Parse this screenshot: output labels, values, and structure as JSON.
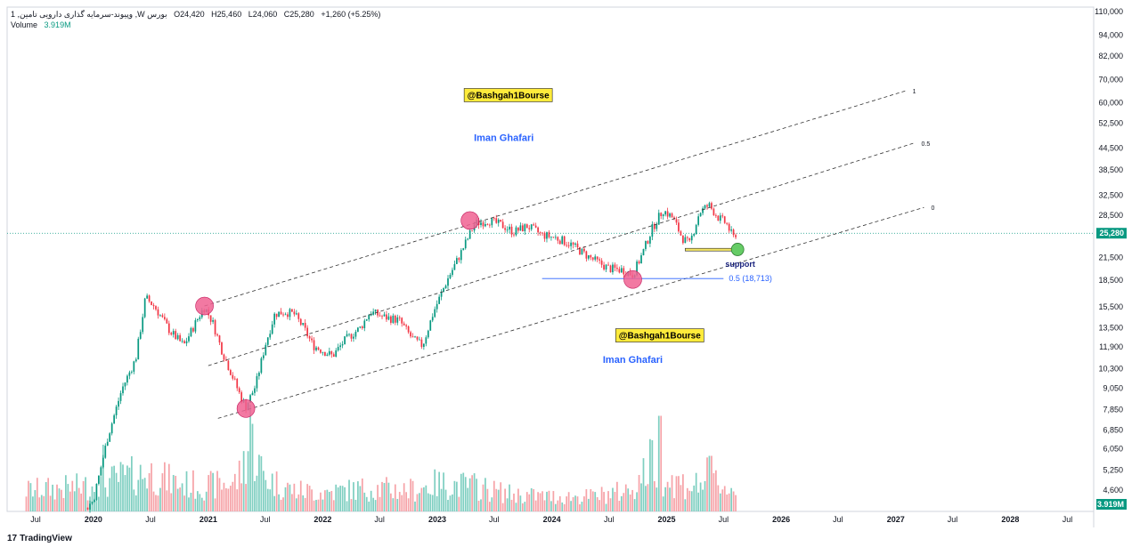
{
  "legend": {
    "symbol": "وپیوند-سرمایه گذاری دارویی تامین, 1 ,W بورس",
    "open": "O24,420",
    "high": "H25,460",
    "low": "L24,060",
    "close": "C25,280",
    "change": "+1,260 (+5.25%)",
    "volume_label": "Volume",
    "volume_value": "3.919M"
  },
  "branding": {
    "logo_text": "TradingView",
    "logo_mark": "17"
  },
  "colors": {
    "up": "#089981",
    "down": "#f23645",
    "vol_up": "#7fcfc1",
    "vol_down": "#f6a3a8",
    "channel": "#333333",
    "circle": "#f06292",
    "support_circle": "#66cc66",
    "support_bar": "#f5e663",
    "watermark_bg": "#ffeb3b",
    "blue_text": "#2962ff",
    "fib_line": "#2962ff"
  },
  "chart_data": {
    "type": "candlestick",
    "timeframe": "1W",
    "y_axis": {
      "scale": "log",
      "ticks": [
        "110,000",
        "94,000",
        "82,000",
        "70,000",
        "60,000",
        "52,500",
        "44,500",
        "38,500",
        "32,500",
        "28,500",
        "25,280",
        "21,500",
        "18,500",
        "15,500",
        "13,500",
        "11,900",
        "10,300",
        "9,050",
        "7,850",
        "6,850",
        "6,050",
        "5,250",
        "4,600",
        "3.919M"
      ],
      "range": [
        3900,
        110000
      ]
    },
    "x_axis": {
      "ticks": [
        "Jul",
        "2020",
        "Jul",
        "2021",
        "Jul",
        "2022",
        "Jul",
        "2023",
        "Jul",
        "2024",
        "Jul",
        "2025",
        "Jul",
        "2026",
        "Jul",
        "2027",
        "Jul",
        "2028",
        "Jul"
      ]
    },
    "last_price": "25,280",
    "last_volume": "3.919M",
    "price_path": [
      [
        "2019-06-01",
        4000
      ],
      [
        "2019-12-01",
        4000
      ],
      [
        "2020-01-01",
        4300
      ],
      [
        "2020-02-15",
        6500
      ],
      [
        "2020-04-01",
        9000
      ],
      [
        "2020-05-15",
        11000
      ],
      [
        "2020-06-15",
        16500
      ],
      [
        "2020-07-15",
        15500
      ],
      [
        "2020-09-01",
        13200
      ],
      [
        "2020-10-15",
        12000
      ],
      [
        "2020-12-01",
        14500
      ],
      [
        "2020-12-20",
        15500
      ],
      [
        "2021-01-15",
        14000
      ],
      [
        "2021-02-15",
        11500
      ],
      [
        "2021-03-15",
        10000
      ],
      [
        "2021-04-20",
        8300
      ],
      [
        "2021-05-01",
        8000
      ],
      [
        "2021-06-01",
        9200
      ],
      [
        "2021-07-01",
        12000
      ],
      [
        "2021-08-01",
        14800
      ],
      [
        "2021-09-01",
        15000
      ],
      [
        "2021-10-01",
        14800
      ],
      [
        "2021-11-01",
        13500
      ],
      [
        "2021-12-01",
        12000
      ],
      [
        "2022-02-01",
        11200
      ],
      [
        "2022-03-15",
        12500
      ],
      [
        "2022-05-01",
        13500
      ],
      [
        "2022-06-01",
        15000
      ],
      [
        "2022-07-15",
        14500
      ],
      [
        "2022-09-01",
        14200
      ],
      [
        "2022-10-15",
        12500
      ],
      [
        "2022-11-15",
        12000
      ],
      [
        "2022-12-20",
        15000
      ],
      [
        "2023-02-01",
        18500
      ],
      [
        "2023-03-15",
        22000
      ],
      [
        "2023-05-01",
        27000
      ],
      [
        "2023-06-15",
        27500
      ],
      [
        "2023-08-01",
        26500
      ],
      [
        "2023-09-01",
        25500
      ],
      [
        "2023-10-15",
        26500
      ],
      [
        "2023-12-01",
        25000
      ],
      [
        "2024-01-15",
        24500
      ],
      [
        "2024-03-01",
        23500
      ],
      [
        "2024-05-01",
        21500
      ],
      [
        "2024-07-01",
        20000
      ],
      [
        "2024-08-15",
        19800
      ],
      [
        "2024-09-15",
        19200
      ],
      [
        "2024-10-15",
        22000
      ],
      [
        "2024-11-15",
        26000
      ],
      [
        "2024-12-20",
        29500
      ],
      [
        "2025-01-20",
        28000
      ],
      [
        "2025-02-20",
        24500
      ],
      [
        "2025-03-15",
        23500
      ],
      [
        "2025-04-15",
        29000
      ],
      [
        "2025-05-15",
        30500
      ],
      [
        "2025-06-15",
        28000
      ],
      [
        "2025-07-10",
        27000
      ],
      [
        "2025-08-01",
        24500
      ],
      [
        "2025-08-10",
        25280
      ]
    ],
    "volume_path": [
      [
        "2019-06-01",
        1.0
      ],
      [
        "2020-01-01",
        1.2
      ],
      [
        "2020-04-01",
        1.6
      ],
      [
        "2020-07-01",
        1.8
      ],
      [
        "2020-10-01",
        1.3
      ],
      [
        "2021-01-01",
        1.2
      ],
      [
        "2021-04-01",
        1.4
      ],
      [
        "2021-05-15",
        3.5
      ],
      [
        "2021-07-01",
        1.6
      ],
      [
        "2021-10-01",
        1.0
      ],
      [
        "2022-01-01",
        0.9
      ],
      [
        "2022-06-01",
        1.1
      ],
      [
        "2022-10-01",
        1.0
      ],
      [
        "2023-01-01",
        1.3
      ],
      [
        "2023-05-01",
        1.2
      ],
      [
        "2023-09-01",
        0.8
      ],
      [
        "2024-01-01",
        0.7
      ],
      [
        "2024-05-01",
        0.7
      ],
      [
        "2024-09-01",
        1.0
      ],
      [
        "2024-11-15",
        2.4
      ],
      [
        "2025-01-01",
        1.5
      ],
      [
        "2025-04-01",
        1.2
      ],
      [
        "2025-05-15",
        1.7
      ],
      [
        "2025-08-10",
        0.9
      ]
    ],
    "volume_spikes": [
      [
        "2021-05-15",
        4.8
      ],
      [
        "2024-12-10",
        4.3
      ],
      [
        "2024-11-15",
        3.2
      ],
      [
        "2020-02-01",
        3.0
      ],
      [
        "2025-05-20",
        2.5
      ]
    ],
    "channel": {
      "style": "dashed parallel channel",
      "lines": [
        {
          "label": "1",
          "start": [
            "2020-12-20",
            15600
          ],
          "end": [
            "2027-02-01",
            65000
          ]
        },
        {
          "label": "0.5",
          "start": [
            "2021-01-01",
            10500
          ],
          "end": [
            "2027-03-01",
            46000
          ]
        },
        {
          "label": "0",
          "start": [
            "2021-02-01",
            7400
          ],
          "end": [
            "2027-04-01",
            30000
          ]
        }
      ]
    },
    "fib_level": {
      "label": "0.5 (18,713)",
      "value": 18713,
      "start": "2023-12-01",
      "end": "2025-07-01"
    },
    "support": {
      "label": "support",
      "value": 22600,
      "start": "2025-03-01",
      "end": "2025-09-01",
      "circle_at": [
        "2025-08-15",
        22700
      ]
    },
    "pivot_circles": [
      [
        "2020-12-20",
        15600
      ],
      [
        "2021-05-01",
        7900
      ],
      [
        "2023-04-15",
        27500
      ],
      [
        "2024-09-15",
        18600
      ]
    ],
    "annotations": [
      {
        "type": "watermark",
        "text": "@Bashgah1Bourse",
        "at": [
          "2023-08-15",
          63000
        ]
      },
      {
        "type": "text",
        "text": "Iman Ghafari",
        "at": [
          "2023-08-01",
          47500
        ]
      },
      {
        "type": "watermark",
        "text": "@Bashgah1Bourse",
        "at": [
          "2024-12-10",
          12800
        ]
      },
      {
        "type": "text",
        "text": "Iman Ghafari",
        "at": [
          "2024-09-15",
          10900
        ]
      }
    ]
  }
}
